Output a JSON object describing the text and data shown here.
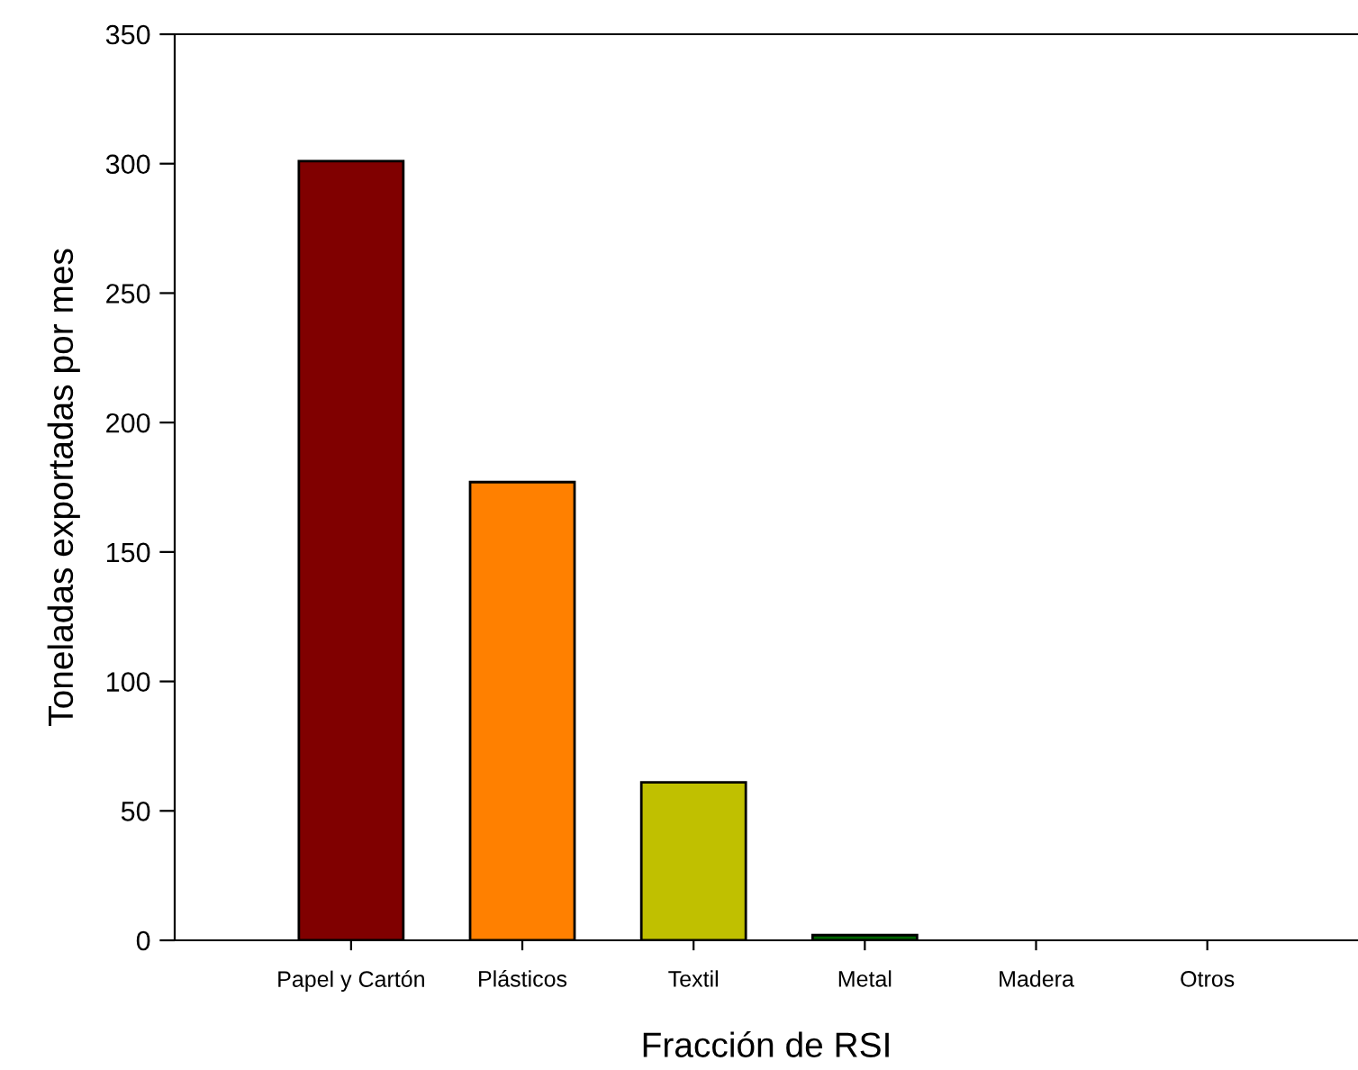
{
  "chart_data": {
    "type": "bar",
    "xlabel": "Fracción de RSI",
    "ylabel": "Toneladas exportadas por mes",
    "categories": [
      "Papel y Cartón",
      "Plásticos",
      "Textil",
      "Metal",
      "Madera",
      "Otros"
    ],
    "values": [
      301,
      177,
      61,
      2,
      0,
      0
    ],
    "colors": [
      "#800000",
      "#ff8000",
      "#c0c000",
      "#006400",
      null,
      null
    ],
    "ylim": [
      0,
      350
    ],
    "yticks": [
      0,
      50,
      100,
      150,
      200,
      250,
      300,
      350
    ],
    "grid": false
  }
}
